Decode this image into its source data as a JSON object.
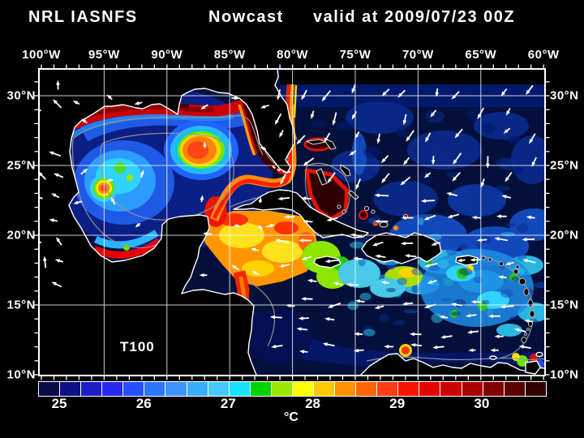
{
  "title": {
    "left": "NRL IASNFS",
    "center": "Nowcast",
    "right": "valid at 2009/07/23 00Z"
  },
  "map": {
    "annotation": "T100",
    "frame_color": "#ffffff",
    "land_color": "#000000",
    "gridline_color": "#ffffff"
  },
  "axes": {
    "top_labels": [
      "100°W",
      "95°W",
      "90°W",
      "85°W",
      "80°W",
      "75°W",
      "70°W",
      "65°W",
      "60°W"
    ],
    "left_labels": [
      "30°N",
      "25°N",
      "20°N",
      "15°N",
      "10°N"
    ],
    "right_labels": [
      "30°N",
      "25°N",
      "20°N",
      "15°N",
      "10°N"
    ]
  },
  "colorbar": {
    "unit": "°C",
    "tick_labels": [
      "25",
      "26",
      "27",
      "28",
      "29",
      "30"
    ],
    "range_min": 24.75,
    "range_max": 30.75,
    "step": 0.25,
    "cells": [
      "#0a0a46",
      "#0f0f87",
      "#1d1dc8",
      "#2929ef",
      "#2451ff",
      "#2a75ff",
      "#3c95ff",
      "#37adff",
      "#45c8ff",
      "#18e1ff",
      "#00d300",
      "#9ae800",
      "#ffff00",
      "#ffc800",
      "#ff9000",
      "#ff6400",
      "#ff3c14",
      "#fa1400",
      "#e60000",
      "#cd0000",
      "#aa0000",
      "#820000",
      "#5a0000",
      "#320000"
    ]
  },
  "chart_data": {
    "type": "heatmap",
    "title": "NRL IASNFS Nowcast valid at 2009/07/23 00Z",
    "variable": "T100",
    "units": "°C",
    "x_axis": {
      "ticks": [
        "100°W",
        "95°W",
        "90°W",
        "85°W",
        "80°W",
        "75°W",
        "70°W",
        "65°W",
        "60°W"
      ],
      "range_deg_west": [
        100.2,
        60.1
      ],
      "minor_tick_deg": 1
    },
    "y_axis": {
      "ticks": [
        "30°N",
        "25°N",
        "20°N",
        "15°N",
        "10°N"
      ],
      "range_deg_north": [
        10.0,
        31.9
      ],
      "minor_tick_deg": 1
    },
    "color_scale": {
      "min": 24.75,
      "max": 30.75,
      "step": 0.25,
      "colors": [
        "#0a0a46",
        "#0f0f87",
        "#1d1dc8",
        "#2929ef",
        "#2451ff",
        "#2a75ff",
        "#3c95ff",
        "#37adff",
        "#45c8ff",
        "#18e1ff",
        "#00d300",
        "#9ae800",
        "#ffff00",
        "#ffc800",
        "#ff9000",
        "#ff6400",
        "#ff3c14",
        "#fa1400",
        "#e60000",
        "#cd0000",
        "#aa0000",
        "#820000",
        "#5a0000",
        "#320000"
      ],
      "tick_values": [
        25,
        26,
        27,
        28,
        29,
        30
      ]
    },
    "legend_position": "bottom",
    "grid": true
  }
}
